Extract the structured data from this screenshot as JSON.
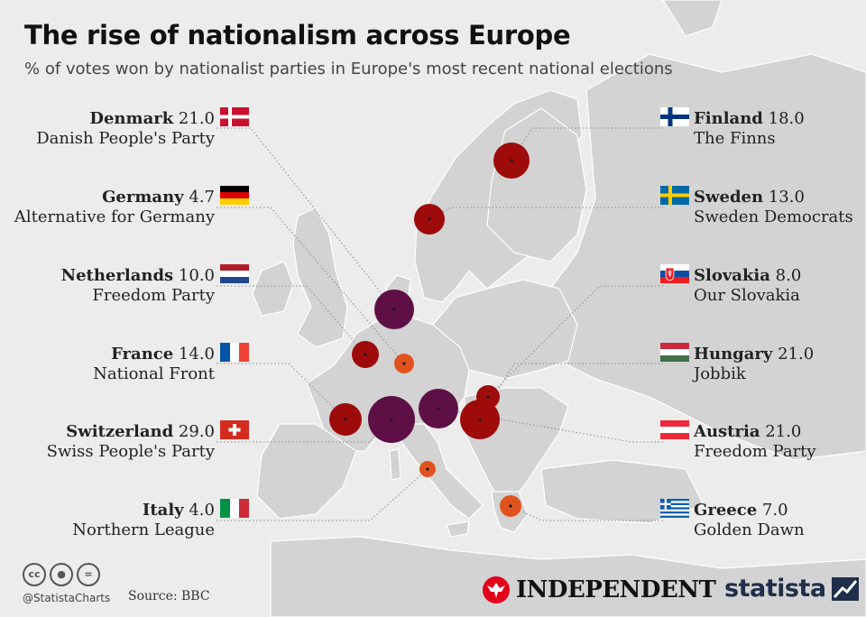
{
  "header": {
    "title": "The rise of nationalism across Europe",
    "subtitle": "% of votes won by nationalist parties in Europe's most recent national elections"
  },
  "chart_data": {
    "type": "bubble-map",
    "unit": "% of votes",
    "entries": [
      {
        "country": "Denmark",
        "value": 21.0,
        "value_label": "21.0",
        "party": "Danish People's Party"
      },
      {
        "country": "Germany",
        "value": 4.7,
        "value_label": "4.7",
        "party": "Alternative for Germany"
      },
      {
        "country": "Netherlands",
        "value": 10.0,
        "value_label": "10.0",
        "party": "Freedom Party"
      },
      {
        "country": "France",
        "value": 14.0,
        "value_label": "14.0",
        "party": "National Front"
      },
      {
        "country": "Switzerland",
        "value": 29.0,
        "value_label": "29.0",
        "party": "Swiss People's Party"
      },
      {
        "country": "Italy",
        "value": 4.0,
        "value_label": "4.0",
        "party": "Northern League"
      },
      {
        "country": "Finland",
        "value": 18.0,
        "value_label": "18.0",
        "party": "The Finns"
      },
      {
        "country": "Sweden",
        "value": 13.0,
        "value_label": "13.0",
        "party": "Sweden Democrats"
      },
      {
        "country": "Slovakia",
        "value": 8.0,
        "value_label": "8.0",
        "party": "Our Slovakia"
      },
      {
        "country": "Hungary",
        "value": 21.0,
        "value_label": "21.0",
        "party": "Jobbik"
      },
      {
        "country": "Austria",
        "value": 21.0,
        "value_label": "21.0",
        "party": "Freedom Party"
      },
      {
        "country": "Greece",
        "value": 7.0,
        "value_label": "7.0",
        "party": "Golden Dawn"
      }
    ],
    "colors": {
      "high": "#5e1046",
      "mid": "#9e0b0b",
      "low": "#e0531e",
      "land": "#d2d2d2",
      "sea": "#ececec",
      "leader": "#888888"
    }
  },
  "footer": {
    "handle": "@StatistaCharts",
    "source": "Source: BBC",
    "publisher": "INDEPENDENT",
    "brand": "statista",
    "license_icons": [
      "cc-icon",
      "by-icon",
      "nd-icon"
    ]
  }
}
